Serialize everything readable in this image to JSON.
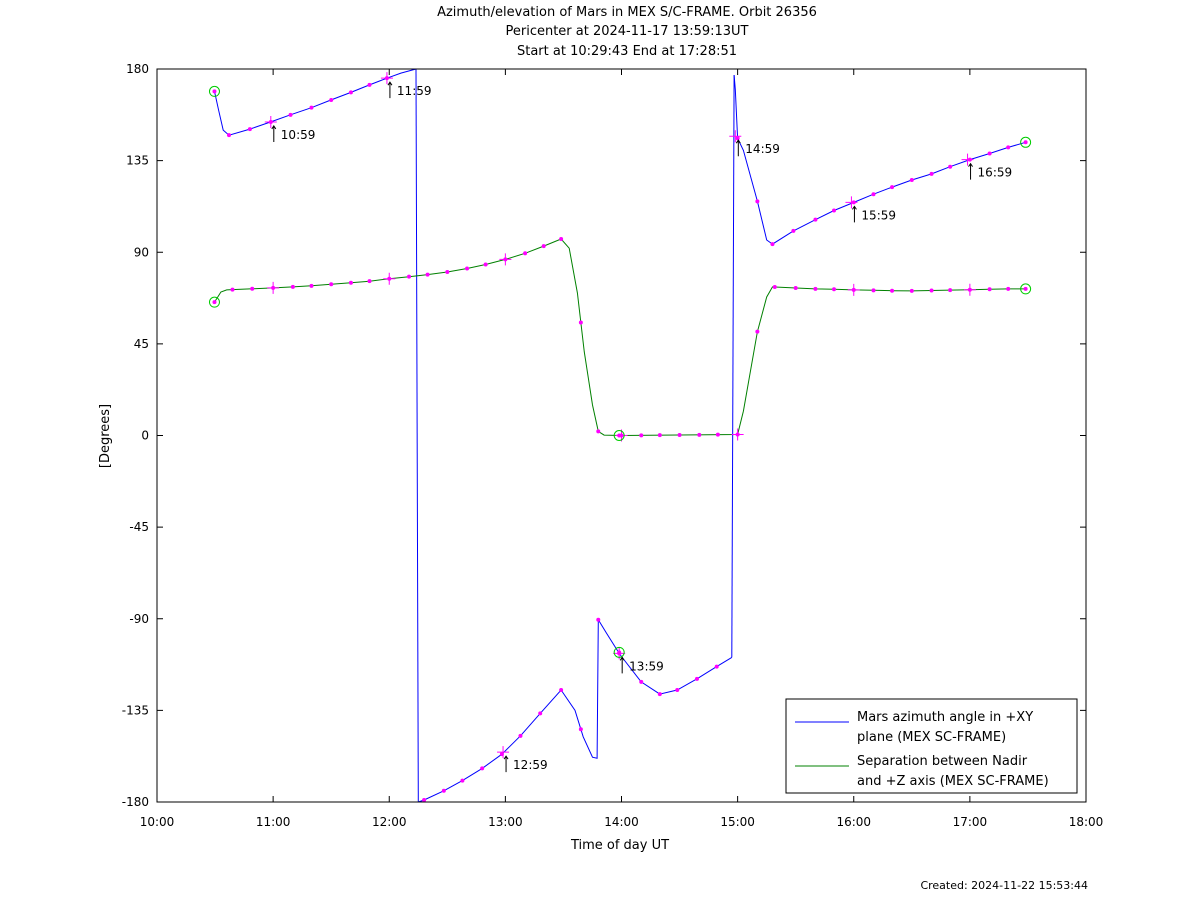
{
  "chart_data": {
    "type": "line",
    "title_lines": [
      "Azimuth/elevation of Mars in MEX S/C-FRAME.  Orbit 26356",
      "Pericenter at 2024-11-17 13:59:13UT",
      "Start at 10:29:43 End at 17:28:51"
    ],
    "xlabel": "Time of day UT",
    "ylabel": "[Degrees]",
    "xlim": [
      10,
      18
    ],
    "ylim": [
      -180,
      180
    ],
    "x_ticks": [
      10,
      11,
      12,
      13,
      14,
      15,
      16,
      17,
      18
    ],
    "x_tick_labels": [
      "10:00",
      "11:00",
      "12:00",
      "13:00",
      "14:00",
      "15:00",
      "16:00",
      "17:00",
      "18:00"
    ],
    "y_ticks": [
      180,
      135,
      90,
      45,
      0,
      -45,
      -90,
      -135,
      -180
    ],
    "y_tick_labels": [
      "180",
      "135",
      "90",
      "45",
      "0",
      "-45",
      "-90",
      "-135",
      "-180"
    ],
    "grid": false,
    "legend_position": "bottom-right",
    "series": [
      {
        "name": "Mars azimuth angle in +XY plane (MEX SC-FRAME)",
        "legend_lines": [
          "Mars azimuth angle in +XY",
          "plane (MEX SC-FRAME)"
        ],
        "color": "#0000ff",
        "segments": [
          [
            [
              10.495,
              169
            ],
            [
              10.53,
              160
            ],
            [
              10.57,
              150
            ],
            [
              10.62,
              147.5
            ],
            [
              10.8,
              150.5
            ],
            [
              10.98,
              154
            ],
            [
              11.15,
              157.5
            ],
            [
              11.33,
              161
            ],
            [
              11.5,
              164.8
            ],
            [
              11.67,
              168.5
            ],
            [
              11.83,
              172.2
            ],
            [
              11.98,
              175.5
            ],
            [
              12.1,
              178
            ],
            [
              12.23,
              180
            ]
          ],
          [
            [
              12.23,
              180
            ],
            [
              12.25,
              -180
            ]
          ],
          [
            [
              12.25,
              -180
            ],
            [
              12.3,
              -179
            ],
            [
              12.47,
              -174.5
            ],
            [
              12.63,
              -169.5
            ],
            [
              12.8,
              -163.5
            ],
            [
              12.97,
              -156.5
            ],
            [
              13.13,
              -147.5
            ],
            [
              13.3,
              -136.5
            ],
            [
              13.48,
              -125
            ],
            [
              13.6,
              -135
            ],
            [
              13.67,
              -148
            ],
            [
              13.75,
              -158
            ],
            [
              13.79,
              -158.5
            ],
            [
              13.8,
              -90.5
            ],
            [
              13.87,
              -97
            ],
            [
              13.98,
              -107
            ],
            [
              14.02,
              -110
            ],
            [
              14.17,
              -121
            ],
            [
              14.33,
              -127
            ],
            [
              14.48,
              -125
            ],
            [
              14.65,
              -119.5
            ],
            [
              14.82,
              -113.5
            ],
            [
              14.95,
              -109
            ]
          ],
          [
            [
              14.95,
              -109
            ],
            [
              14.97,
              177
            ]
          ],
          [
            [
              14.97,
              177
            ],
            [
              14.98,
              170
            ],
            [
              15.0,
              146
            ],
            [
              15.05,
              140
            ],
            [
              15.17,
              115
            ],
            [
              15.25,
              96
            ],
            [
              15.3,
              94
            ],
            [
              15.48,
              100.5
            ],
            [
              15.67,
              106
            ],
            [
              15.83,
              110.5
            ],
            [
              16.0,
              114.5
            ],
            [
              16.17,
              118.5
            ],
            [
              16.33,
              122
            ],
            [
              16.5,
              125.5
            ],
            [
              16.67,
              128.5
            ],
            [
              16.83,
              132
            ],
            [
              17.0,
              135.5
            ],
            [
              17.17,
              138.5
            ],
            [
              17.33,
              141.5
            ],
            [
              17.48,
              144
            ]
          ]
        ],
        "markers_x": [
          10.62,
          10.8,
          10.98,
          11.15,
          11.33,
          11.5,
          11.67,
          11.83,
          11.98,
          12.3,
          12.47,
          12.63,
          12.8,
          12.97,
          13.13,
          13.3,
          13.48,
          13.65,
          13.8,
          13.98,
          14.17,
          14.33,
          14.48,
          14.65,
          14.82,
          15.0,
          15.17,
          15.3,
          15.48,
          15.67,
          15.83,
          16.0,
          16.17,
          16.33,
          16.5,
          16.67,
          16.83,
          17.0,
          17.17,
          17.33
        ],
        "circles": [
          [
            10.495,
            169
          ],
          [
            13.98,
            -106.5
          ],
          [
            17.48,
            144
          ]
        ],
        "hour_marks": [
          [
            10.98,
            154
          ],
          [
            11.98,
            175.5
          ],
          [
            12.98,
            -155.5
          ],
          [
            13.98,
            -107
          ],
          [
            14.98,
            147
          ],
          [
            15.98,
            114.5
          ],
          [
            16.98,
            135.5
          ]
        ]
      },
      {
        "name": "Separation between Nadir and +Z axis (MEX SC-FRAME)",
        "legend_lines": [
          "Separation between Nadir",
          "and +Z axis (MEX SC-FRAME)"
        ],
        "color": "#008000",
        "segments": [
          [
            [
              10.495,
              65.5
            ],
            [
              10.55,
              70.5
            ],
            [
              10.6,
              71.5
            ],
            [
              10.8,
              72
            ],
            [
              11.0,
              72.5
            ],
            [
              11.17,
              73
            ],
            [
              11.33,
              73.5
            ],
            [
              11.5,
              74.3
            ],
            [
              11.67,
              75
            ],
            [
              11.83,
              75.8
            ],
            [
              12.0,
              77
            ],
            [
              12.17,
              78
            ],
            [
              12.33,
              79
            ],
            [
              12.5,
              80.3
            ],
            [
              12.67,
              82
            ],
            [
              12.83,
              84
            ],
            [
              13.0,
              86.5
            ],
            [
              13.17,
              89.5
            ],
            [
              13.33,
              93
            ],
            [
              13.48,
              96.5
            ],
            [
              13.55,
              92
            ],
            [
              13.62,
              70
            ],
            [
              13.68,
              41
            ],
            [
              13.75,
              15
            ],
            [
              13.8,
              2
            ],
            [
              13.85,
              0.2
            ],
            [
              14.0,
              0
            ],
            [
              15.0,
              0.5
            ],
            [
              15.05,
              12
            ],
            [
              15.17,
              51
            ],
            [
              15.25,
              68
            ],
            [
              15.3,
              73
            ],
            [
              15.48,
              72.5
            ],
            [
              15.67,
              72
            ],
            [
              15.83,
              71.8
            ],
            [
              16.0,
              71.5
            ],
            [
              16.17,
              71.3
            ],
            [
              16.33,
              71.1
            ],
            [
              16.5,
              71
            ],
            [
              16.67,
              71.2
            ],
            [
              16.83,
              71.4
            ],
            [
              17.0,
              71.6
            ],
            [
              17.17,
              71.8
            ],
            [
              17.33,
              72
            ],
            [
              17.48,
              72
            ]
          ]
        ],
        "markers_x": [
          10.65,
          10.82,
          11.0,
          11.17,
          11.33,
          11.5,
          11.67,
          11.83,
          12.0,
          12.17,
          12.33,
          12.5,
          12.67,
          12.83,
          13.0,
          13.17,
          13.33,
          13.48,
          13.65,
          13.8,
          14.0,
          14.17,
          14.33,
          14.5,
          14.67,
          14.83,
          15.0,
          15.17,
          15.32,
          15.5,
          15.67,
          15.83,
          16.0,
          16.17,
          16.33,
          16.5,
          16.67,
          16.83,
          17.0,
          17.17,
          17.33
        ],
        "circles": [
          [
            10.495,
            65.5
          ],
          [
            13.98,
            0
          ],
          [
            17.48,
            72
          ]
        ],
        "hour_marks": [
          [
            11.0,
            72.5
          ],
          [
            12.0,
            77
          ],
          [
            13.0,
            86.5
          ],
          [
            14.0,
            0
          ],
          [
            15.0,
            0.5
          ],
          [
            16.0,
            71.5
          ],
          [
            17.0,
            71.6
          ]
        ]
      }
    ],
    "annotations": [
      {
        "label": "10:59",
        "x": 10.98,
        "y": 154
      },
      {
        "label": "11:59",
        "x": 11.98,
        "y": 175.5
      },
      {
        "label": "12:59",
        "x": 12.98,
        "y": -155.5
      },
      {
        "label": "13:59",
        "x": 13.98,
        "y": -107
      },
      {
        "label": "14:59",
        "x": 14.98,
        "y": 147
      },
      {
        "label": "15:59",
        "x": 15.98,
        "y": 114.5
      },
      {
        "label": "16:59",
        "x": 16.98,
        "y": 135.5
      }
    ]
  },
  "footer": {
    "created": "Created: 2024-11-22 15:53:44"
  }
}
